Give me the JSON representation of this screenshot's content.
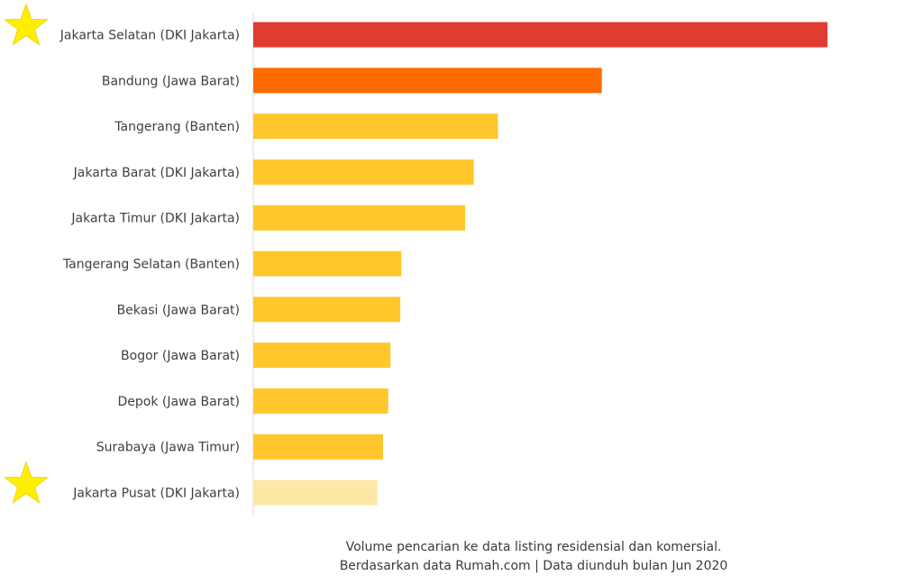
{
  "chart_data": {
    "type": "bar",
    "orientation": "horizontal",
    "categories": [
      "Jakarta Selatan (DKI Jakarta)",
      "Bandung (Jawa Barat)",
      "Tangerang (Banten)",
      "Jakarta Barat (DKI Jakarta)",
      "Jakarta Timur (DKI Jakarta)",
      "Tangerang Selatan (Banten)",
      "Bekasi (Jawa Barat)",
      "Bogor (Jawa Barat)",
      "Depok (Jawa Barat)",
      "Surabaya (Jawa Timur)",
      "Jakarta Pusat (DKI Jakarta)"
    ],
    "values": [
      100,
      60.7,
      42.6,
      38.4,
      36.9,
      25.8,
      25.6,
      23.9,
      23.5,
      22.6,
      21.6
    ],
    "bar_colors": [
      "#e03c31",
      "#ff6a00",
      "#ffc72c",
      "#ffc72c",
      "#ffc72c",
      "#ffc72c",
      "#ffc72c",
      "#ffc72c",
      "#ffc72c",
      "#ffc72c",
      "#fde8a6"
    ],
    "starred_categories": [
      "Jakarta Selatan (DKI Jakarta)",
      "Jakarta Pusat (DKI Jakarta)"
    ],
    "xlim": [
      0,
      100
    ],
    "axis_line_color": "#d9d9d9",
    "star_color": "#ffee00",
    "grid": false,
    "title": "",
    "xlabel": "",
    "ylabel": ""
  },
  "caption": {
    "line1": "Volume pencarian ke data listing residensial dan komersial.",
    "line2": "Berdasarkan data Rumah.com | Data diunduh bulan Jun 2020"
  }
}
